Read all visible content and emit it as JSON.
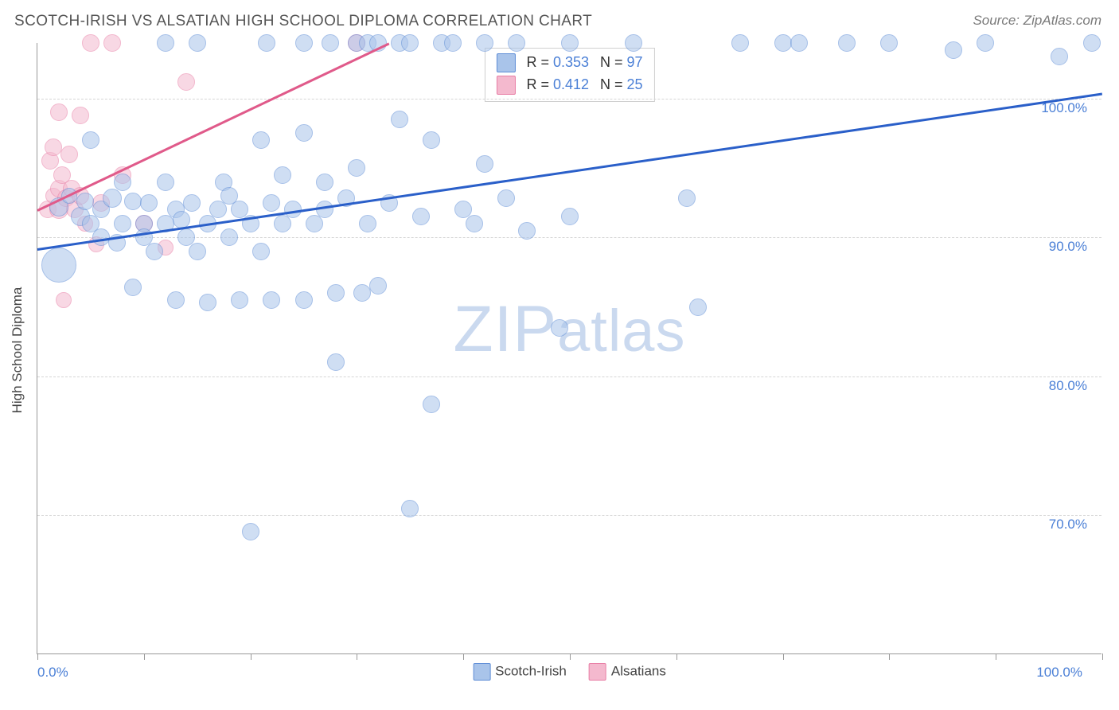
{
  "title": "SCOTCH-IRISH VS ALSATIAN HIGH SCHOOL DIPLOMA CORRELATION CHART",
  "source": "Source: ZipAtlas.com",
  "watermark": {
    "prefix": "ZIP",
    "suffix": "atlas"
  },
  "chart": {
    "type": "scatter",
    "background_color": "#ffffff",
    "grid_color": "#d5d5d5",
    "axis_color": "#999999",
    "tick_label_color": "#4a7fd6",
    "text_color": "#444444",
    "ylabel": "High School Diploma",
    "ylabel_fontsize": 17,
    "xlim": [
      0,
      100
    ],
    "ylim": [
      60,
      104
    ],
    "ygrid_values": [
      70,
      80,
      90,
      100
    ],
    "ytick_labels": [
      "70.0%",
      "80.0%",
      "90.0%",
      "100.0%"
    ],
    "xtick_positions": [
      0,
      10,
      20,
      30,
      40,
      50,
      60,
      70,
      80,
      90,
      100
    ],
    "x_origin_label": "0.0%",
    "x_end_label": "100.0%"
  },
  "series": {
    "scotch_irish": {
      "label": "Scotch-Irish",
      "fill_color": "#a9c4ea",
      "stroke_color": "#5e8dd6",
      "fill_opacity": 0.55,
      "marker_border_width": 1.2,
      "R": "0.353",
      "N": "97",
      "trendline": {
        "color": "#2a5fc9",
        "width": 3,
        "x1": 0,
        "y1": 89.2,
        "x2": 100,
        "y2": 100.4
      },
      "points": [
        {
          "x": 2,
          "y": 88,
          "r": 22
        },
        {
          "x": 2,
          "y": 92.2,
          "r": 12
        },
        {
          "x": 3,
          "y": 93,
          "r": 10
        },
        {
          "x": 4,
          "y": 91.5,
          "r": 12
        },
        {
          "x": 4.5,
          "y": 92.6,
          "r": 11
        },
        {
          "x": 5,
          "y": 97,
          "r": 11
        },
        {
          "x": 5,
          "y": 91,
          "r": 11
        },
        {
          "x": 6,
          "y": 92,
          "r": 11
        },
        {
          "x": 6,
          "y": 90,
          "r": 11
        },
        {
          "x": 7,
          "y": 92.8,
          "r": 12
        },
        {
          "x": 7.5,
          "y": 89.6,
          "r": 11
        },
        {
          "x": 8,
          "y": 94,
          "r": 11
        },
        {
          "x": 8,
          "y": 91,
          "r": 11
        },
        {
          "x": 9,
          "y": 86.4,
          "r": 11
        },
        {
          "x": 9,
          "y": 92.6,
          "r": 11
        },
        {
          "x": 10,
          "y": 91,
          "r": 11
        },
        {
          "x": 10,
          "y": 90,
          "r": 11
        },
        {
          "x": 10.5,
          "y": 92.5,
          "r": 11
        },
        {
          "x": 11,
          "y": 89,
          "r": 11
        },
        {
          "x": 12,
          "y": 91,
          "r": 11
        },
        {
          "x": 12,
          "y": 94,
          "r": 11
        },
        {
          "x": 12,
          "y": 104,
          "r": 11
        },
        {
          "x": 13,
          "y": 92,
          "r": 11
        },
        {
          "x": 13,
          "y": 85.5,
          "r": 11
        },
        {
          "x": 13.5,
          "y": 91.3,
          "r": 11
        },
        {
          "x": 14,
          "y": 90,
          "r": 11
        },
        {
          "x": 14.5,
          "y": 92.5,
          "r": 11
        },
        {
          "x": 15,
          "y": 89,
          "r": 11
        },
        {
          "x": 15,
          "y": 104,
          "r": 11
        },
        {
          "x": 16,
          "y": 91,
          "r": 11
        },
        {
          "x": 16,
          "y": 85.3,
          "r": 11
        },
        {
          "x": 17,
          "y": 92,
          "r": 11
        },
        {
          "x": 17.5,
          "y": 94,
          "r": 11
        },
        {
          "x": 18,
          "y": 90,
          "r": 11
        },
        {
          "x": 18,
          "y": 93,
          "r": 11
        },
        {
          "x": 19,
          "y": 85.5,
          "r": 11
        },
        {
          "x": 19,
          "y": 92,
          "r": 11
        },
        {
          "x": 20,
          "y": 68.8,
          "r": 11
        },
        {
          "x": 20,
          "y": 91,
          "r": 11
        },
        {
          "x": 21,
          "y": 89,
          "r": 11
        },
        {
          "x": 21,
          "y": 97,
          "r": 11
        },
        {
          "x": 21.5,
          "y": 104,
          "r": 11
        },
        {
          "x": 22,
          "y": 92.5,
          "r": 11
        },
        {
          "x": 22,
          "y": 85.5,
          "r": 11
        },
        {
          "x": 23,
          "y": 91,
          "r": 11
        },
        {
          "x": 23,
          "y": 94.5,
          "r": 11
        },
        {
          "x": 24,
          "y": 92,
          "r": 11
        },
        {
          "x": 25,
          "y": 85.5,
          "r": 11
        },
        {
          "x": 25,
          "y": 97.5,
          "r": 11
        },
        {
          "x": 25,
          "y": 104,
          "r": 11
        },
        {
          "x": 26,
          "y": 91,
          "r": 11
        },
        {
          "x": 27,
          "y": 94,
          "r": 11
        },
        {
          "x": 27,
          "y": 92,
          "r": 11
        },
        {
          "x": 27.5,
          "y": 104,
          "r": 11
        },
        {
          "x": 28,
          "y": 86,
          "r": 11
        },
        {
          "x": 28,
          "y": 81,
          "r": 11
        },
        {
          "x": 29,
          "y": 92.8,
          "r": 11
        },
        {
          "x": 30,
          "y": 104,
          "r": 11
        },
        {
          "x": 30,
          "y": 95,
          "r": 11
        },
        {
          "x": 30.5,
          "y": 86,
          "r": 11
        },
        {
          "x": 31,
          "y": 91,
          "r": 11
        },
        {
          "x": 31,
          "y": 104,
          "r": 11
        },
        {
          "x": 32,
          "y": 104,
          "r": 11
        },
        {
          "x": 32,
          "y": 86.5,
          "r": 11
        },
        {
          "x": 33,
          "y": 92.5,
          "r": 11
        },
        {
          "x": 34,
          "y": 104,
          "r": 11
        },
        {
          "x": 34,
          "y": 98.5,
          "r": 11
        },
        {
          "x": 35,
          "y": 70.5,
          "r": 11
        },
        {
          "x": 35,
          "y": 104,
          "r": 11
        },
        {
          "x": 36,
          "y": 91.5,
          "r": 11
        },
        {
          "x": 37,
          "y": 97,
          "r": 11
        },
        {
          "x": 37,
          "y": 78,
          "r": 11
        },
        {
          "x": 38,
          "y": 104,
          "r": 11
        },
        {
          "x": 39,
          "y": 104,
          "r": 11
        },
        {
          "x": 40,
          "y": 92,
          "r": 11
        },
        {
          "x": 41,
          "y": 91,
          "r": 11
        },
        {
          "x": 42,
          "y": 95.3,
          "r": 11
        },
        {
          "x": 42,
          "y": 104,
          "r": 11
        },
        {
          "x": 44,
          "y": 92.8,
          "r": 11
        },
        {
          "x": 45,
          "y": 104,
          "r": 11
        },
        {
          "x": 46,
          "y": 90.5,
          "r": 11
        },
        {
          "x": 49,
          "y": 83.5,
          "r": 11
        },
        {
          "x": 50,
          "y": 91.5,
          "r": 11
        },
        {
          "x": 50,
          "y": 104,
          "r": 11
        },
        {
          "x": 56,
          "y": 104,
          "r": 11
        },
        {
          "x": 61,
          "y": 92.8,
          "r": 11
        },
        {
          "x": 62,
          "y": 85,
          "r": 11
        },
        {
          "x": 66,
          "y": 104,
          "r": 11
        },
        {
          "x": 70,
          "y": 104,
          "r": 11
        },
        {
          "x": 71.5,
          "y": 104,
          "r": 11
        },
        {
          "x": 76,
          "y": 104,
          "r": 11
        },
        {
          "x": 80,
          "y": 104,
          "r": 11
        },
        {
          "x": 86,
          "y": 103.5,
          "r": 11
        },
        {
          "x": 89,
          "y": 104,
          "r": 11
        },
        {
          "x": 96,
          "y": 103,
          "r": 11
        },
        {
          "x": 99,
          "y": 104,
          "r": 11
        }
      ]
    },
    "alsatians": {
      "label": "Alsatians",
      "fill_color": "#f4b9ce",
      "stroke_color": "#e87da5",
      "fill_opacity": 0.55,
      "marker_border_width": 1.2,
      "R": "0.412",
      "N": "25",
      "trendline": {
        "color": "#e05a8a",
        "width": 3,
        "x1": 0,
        "y1": 92,
        "x2": 33,
        "y2": 104
      },
      "points": [
        {
          "x": 1,
          "y": 92,
          "r": 11
        },
        {
          "x": 1.2,
          "y": 95.5,
          "r": 11
        },
        {
          "x": 1.5,
          "y": 93,
          "r": 10
        },
        {
          "x": 1.5,
          "y": 96.5,
          "r": 11
        },
        {
          "x": 2,
          "y": 99,
          "r": 11
        },
        {
          "x": 2,
          "y": 93.5,
          "r": 11
        },
        {
          "x": 2,
          "y": 92,
          "r": 12
        },
        {
          "x": 2.3,
          "y": 94.5,
          "r": 11
        },
        {
          "x": 2.5,
          "y": 85.5,
          "r": 10
        },
        {
          "x": 2.7,
          "y": 92.8,
          "r": 11
        },
        {
          "x": 3,
          "y": 96,
          "r": 11
        },
        {
          "x": 3.2,
          "y": 93.5,
          "r": 11
        },
        {
          "x": 3.5,
          "y": 92,
          "r": 11
        },
        {
          "x": 4,
          "y": 98.8,
          "r": 11
        },
        {
          "x": 4,
          "y": 93,
          "r": 11
        },
        {
          "x": 4.5,
          "y": 91,
          "r": 10
        },
        {
          "x": 5,
          "y": 104,
          "r": 11
        },
        {
          "x": 5.5,
          "y": 89.5,
          "r": 10
        },
        {
          "x": 6,
          "y": 92.5,
          "r": 11
        },
        {
          "x": 7,
          "y": 104,
          "r": 11
        },
        {
          "x": 8,
          "y": 94.5,
          "r": 11
        },
        {
          "x": 10,
          "y": 91,
          "r": 11
        },
        {
          "x": 12,
          "y": 89.3,
          "r": 10
        },
        {
          "x": 14,
          "y": 101.2,
          "r": 11
        },
        {
          "x": 30,
          "y": 104,
          "r": 11
        }
      ]
    }
  },
  "stats_box": {
    "rows": [
      {
        "swatch_fill": "#a9c4ea",
        "swatch_stroke": "#5e8dd6",
        "r_label": "R =",
        "r_value": "0.353",
        "n_label": "N =",
        "n_value": "97"
      },
      {
        "swatch_fill": "#f4b9ce",
        "swatch_stroke": "#e87da5",
        "r_label": "R =",
        "r_value": "0.412",
        "n_label": "N =",
        "n_value": "25"
      }
    ]
  },
  "bottom_legend": [
    {
      "swatch_fill": "#a9c4ea",
      "swatch_stroke": "#5e8dd6",
      "label": "Scotch-Irish"
    },
    {
      "swatch_fill": "#f4b9ce",
      "swatch_stroke": "#e87da5",
      "label": "Alsatians"
    }
  ]
}
